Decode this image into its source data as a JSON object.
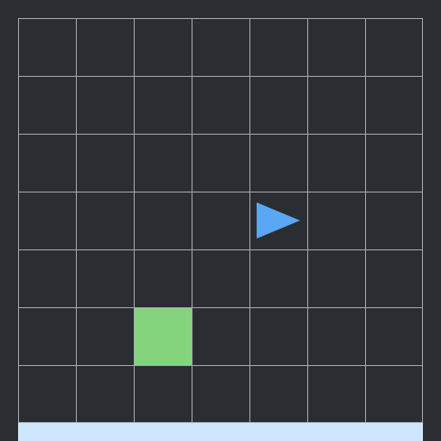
{
  "grid": {
    "rows": 7,
    "cols": 7
  },
  "agent": {
    "row": 3,
    "col": 4,
    "direction": "right",
    "color": "#5aa7f5",
    "icon": "triangle-arrow-right"
  },
  "goal": {
    "row": 5,
    "col": 2,
    "color": "#84d47e"
  },
  "colors": {
    "background": "#2a2e32",
    "grid_line": "#a9a9a9",
    "status_bar": "#cfe6ff"
  }
}
